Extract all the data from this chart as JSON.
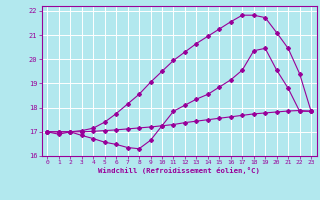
{
  "xlabel": "Windchill (Refroidissement éolien,°C)",
  "xlim": [
    -0.5,
    23.5
  ],
  "ylim": [
    16,
    22.2
  ],
  "xticks": [
    0,
    1,
    2,
    3,
    4,
    5,
    6,
    7,
    8,
    9,
    10,
    11,
    12,
    13,
    14,
    15,
    16,
    17,
    18,
    19,
    20,
    21,
    22,
    23
  ],
  "yticks": [
    16,
    17,
    18,
    19,
    20,
    21,
    22
  ],
  "bg_color": "#b2e8ee",
  "grid_color": "#ffffff",
  "line_color": "#990099",
  "line_dip_x": [
    0,
    1,
    2,
    3,
    4,
    5,
    6,
    7,
    8,
    9,
    10,
    11,
    12,
    13,
    14,
    15,
    16,
    17,
    18,
    19,
    20,
    21,
    22,
    23
  ],
  "line_dip_y": [
    17.0,
    16.9,
    17.0,
    16.85,
    16.72,
    16.57,
    16.48,
    16.35,
    16.3,
    16.65,
    17.25,
    17.85,
    18.1,
    18.35,
    18.55,
    18.85,
    19.15,
    19.55,
    20.35,
    20.45,
    19.55,
    18.8,
    17.85,
    17.85
  ],
  "line_flat_x": [
    0,
    1,
    2,
    3,
    4,
    5,
    6,
    7,
    8,
    9,
    10,
    11,
    12,
    13,
    14,
    15,
    16,
    17,
    18,
    19,
    20,
    21,
    22,
    23
  ],
  "line_flat_y": [
    17.0,
    17.0,
    17.0,
    17.0,
    17.02,
    17.05,
    17.08,
    17.12,
    17.16,
    17.2,
    17.25,
    17.3,
    17.38,
    17.44,
    17.5,
    17.56,
    17.62,
    17.68,
    17.74,
    17.78,
    17.82,
    17.86,
    17.88,
    17.85
  ],
  "line_top_x": [
    0,
    1,
    2,
    3,
    4,
    5,
    6,
    7,
    8,
    9,
    10,
    11,
    12,
    13,
    14,
    15,
    16,
    17,
    18,
    19,
    20,
    21,
    22,
    23
  ],
  "line_top_y": [
    17.0,
    17.0,
    17.0,
    17.05,
    17.15,
    17.4,
    17.75,
    18.15,
    18.55,
    19.05,
    19.5,
    19.95,
    20.3,
    20.65,
    20.95,
    21.25,
    21.55,
    21.82,
    21.82,
    21.72,
    21.1,
    20.45,
    19.4,
    17.85
  ]
}
